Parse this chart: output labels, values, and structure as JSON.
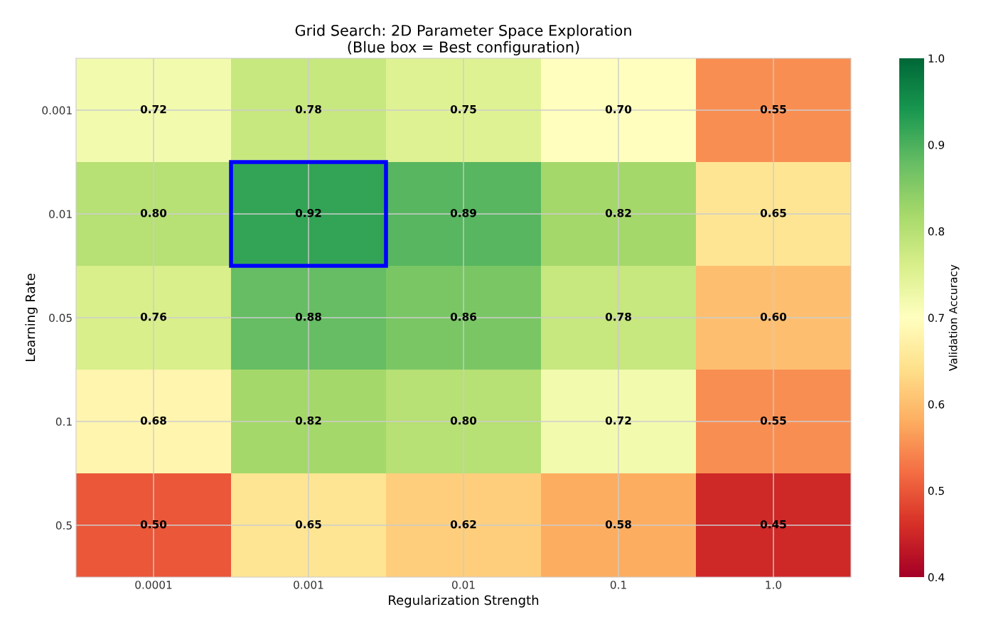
{
  "chart_data": {
    "type": "heatmap",
    "title": "Grid Search: 2D Parameter Space Exploration\n(Blue box = Best configuration)",
    "xlabel": "Regularization Strength",
    "ylabel": "Learning Rate",
    "clabel": "Validation Accuracy",
    "categories": [
      "0.0001",
      "0.001",
      "0.01",
      "0.1",
      "1.0"
    ],
    "y_categories": [
      "0.001",
      "0.01",
      "0.05",
      "0.1",
      "0.5"
    ],
    "cells": [
      [
        0.72,
        0.78,
        0.75,
        0.7,
        0.55
      ],
      [
        0.8,
        0.92,
        0.89,
        0.82,
        0.65
      ],
      [
        0.76,
        0.88,
        0.86,
        0.78,
        0.6
      ],
      [
        0.68,
        0.82,
        0.8,
        0.72,
        0.55
      ],
      [
        0.5,
        0.65,
        0.62,
        0.58,
        0.45
      ]
    ],
    "cell_labels": [
      [
        "0.72",
        "0.78",
        "0.75",
        "0.70",
        "0.55"
      ],
      [
        "0.80",
        "0.92",
        "0.89",
        "0.82",
        "0.65"
      ],
      [
        "0.76",
        "0.88",
        "0.86",
        "0.78",
        "0.60"
      ],
      [
        "0.68",
        "0.82",
        "0.80",
        "0.72",
        "0.55"
      ],
      [
        "0.50",
        "0.65",
        "0.62",
        "0.58",
        "0.45"
      ]
    ],
    "clim": [
      0.4,
      1.0
    ],
    "cticks": [
      0.4,
      0.5,
      0.6,
      0.7,
      0.8,
      0.9,
      {
        "value": 1,
        "label": "1.0"
      }
    ],
    "data_labels": true,
    "grid": true
  }
}
